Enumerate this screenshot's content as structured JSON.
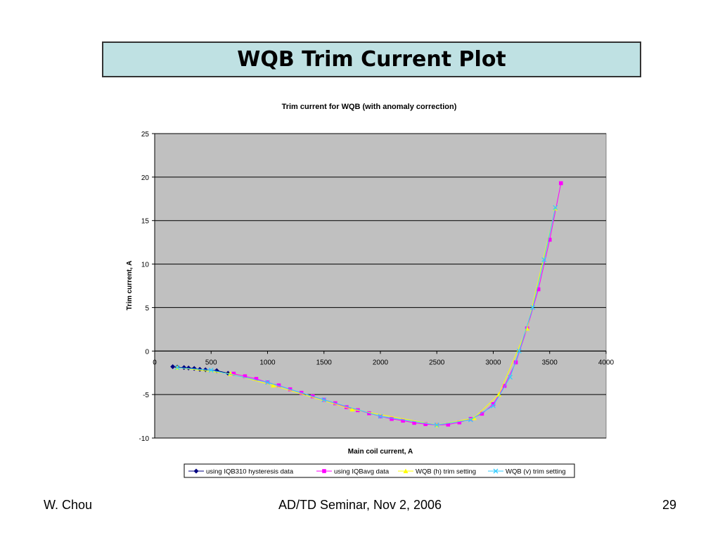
{
  "slide": {
    "title": "WQB Trim Current Plot",
    "footer_left": "W. Chou",
    "footer_center": "AD/TD Seminar, Nov 2, 2006",
    "page_number": "29"
  },
  "colors": {
    "title_bg": "#bfe1e3",
    "plot_bg": "#c0c0c0"
  },
  "chart_data": {
    "type": "line",
    "title": "Trim current for WQB (with anomaly correction)",
    "xlabel": "Main coil current, A",
    "ylabel": "Trim current, A",
    "xlim": [
      0,
      4000
    ],
    "ylim": [
      -10,
      25
    ],
    "x_ticks": [
      "0",
      "500",
      "1000",
      "1500",
      "2000",
      "2500",
      "3000",
      "3500",
      "4000"
    ],
    "y_ticks": [
      "-10",
      "-5",
      "0",
      "5",
      "10",
      "15",
      "20",
      "25"
    ],
    "grid": "horizontal",
    "legend_position": "bottom",
    "series": [
      {
        "name": "using IQB310 hysteresis data",
        "color": "#000080",
        "marker": "diamond",
        "x": [
          160,
          200,
          260,
          300,
          350,
          400,
          450,
          550,
          650
        ],
        "y": [
          -1.8,
          -1.85,
          -1.9,
          -1.95,
          -2.0,
          -2.1,
          -2.15,
          -2.25,
          -2.55
        ]
      },
      {
        "name": "using IQBavg data",
        "color": "#ff00ff",
        "marker": "square",
        "x": [
          700,
          800,
          900,
          1000,
          1100,
          1200,
          1300,
          1400,
          1500,
          1600,
          1700,
          1800,
          1900,
          2000,
          2100,
          2200,
          2300,
          2400,
          2500,
          2600,
          2700,
          2800,
          2900,
          3000,
          3100,
          3200,
          3300,
          3400,
          3500,
          3600
        ],
        "y": [
          -2.6,
          -2.9,
          -3.2,
          -3.6,
          -3.95,
          -4.4,
          -4.8,
          -5.2,
          -5.6,
          -6.0,
          -6.45,
          -6.8,
          -7.15,
          -7.5,
          -7.8,
          -8.0,
          -8.25,
          -8.4,
          -8.5,
          -8.45,
          -8.2,
          -7.8,
          -7.2,
          -6.1,
          -4.0,
          -1.3,
          2.6,
          7.1,
          12.8,
          19.3
        ]
      },
      {
        "name": "WQB (h) trim setting",
        "color": "#ffff00",
        "marker": "triangle",
        "x": [
          200,
          670,
          1050,
          1750,
          2500,
          2830,
          3050,
          3300,
          3550
        ],
        "y": [
          -1.9,
          -2.6,
          -3.95,
          -6.7,
          -8.5,
          -7.7,
          -5.0,
          2.6,
          16.4
        ]
      },
      {
        "name": "WQB (v) trim setting",
        "color": "#33ccff",
        "marker": "x",
        "x": [
          200,
          500,
          1000,
          1500,
          2000,
          2500,
          2800,
          3000,
          3150,
          3230,
          3350,
          3450,
          3550
        ],
        "y": [
          -1.9,
          -2.2,
          -3.6,
          -5.6,
          -7.5,
          -8.5,
          -7.9,
          -6.3,
          -3.0,
          0.0,
          5.0,
          10.5,
          16.5
        ]
      }
    ]
  }
}
